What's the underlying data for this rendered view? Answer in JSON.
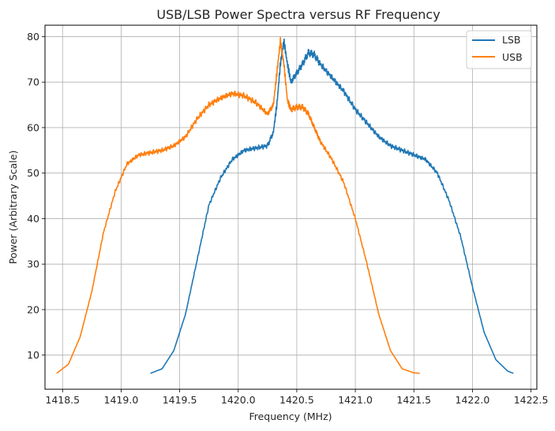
{
  "chart_data": {
    "type": "line",
    "title": "USB/LSB Power Spectra versus RF Frequency",
    "xlabel": "Frequency (MHz)",
    "ylabel": "Power (Arbitrary Scale)",
    "xlim": [
      1418.35,
      1422.55
    ],
    "ylim": [
      2.5,
      82.5
    ],
    "xticks": [
      "1418.5",
      "1419.0",
      "1419.5",
      "1420.0",
      "1420.5",
      "1421.0",
      "1421.5",
      "1422.0",
      "1422.5"
    ],
    "yticks": [
      "10",
      "20",
      "30",
      "40",
      "50",
      "60",
      "70",
      "80"
    ],
    "grid": true,
    "legend": "top-right",
    "series": [
      {
        "name": "LSB",
        "color": "#1f77b4",
        "x": [
          1419.25,
          1419.35,
          1419.45,
          1419.55,
          1419.65,
          1419.75,
          1419.85,
          1419.95,
          1420.05,
          1420.15,
          1420.25,
          1420.3,
          1420.33,
          1420.36,
          1420.39,
          1420.42,
          1420.45,
          1420.5,
          1420.55,
          1420.6,
          1420.65,
          1420.7,
          1420.8,
          1420.9,
          1421.0,
          1421.1,
          1421.2,
          1421.3,
          1421.4,
          1421.5,
          1421.6,
          1421.7,
          1421.8,
          1421.9,
          1422.0,
          1422.1,
          1422.2,
          1422.3,
          1422.35
        ],
        "y": [
          6,
          7,
          11,
          19,
          31,
          43,
          49,
          53,
          55,
          55.5,
          56,
          59,
          65,
          74,
          79,
          74,
          70,
          72,
          74,
          76.5,
          76,
          74,
          71,
          68,
          64,
          61,
          58,
          56,
          55,
          54,
          53,
          50,
          44,
          36,
          25,
          15,
          9,
          6.5,
          6
        ]
      },
      {
        "name": "USB",
        "color": "#ff7f0e",
        "x": [
          1418.45,
          1418.55,
          1418.65,
          1418.75,
          1418.85,
          1418.95,
          1419.05,
          1419.15,
          1419.25,
          1419.35,
          1419.45,
          1419.55,
          1419.65,
          1419.75,
          1419.85,
          1419.95,
          1420.05,
          1420.15,
          1420.25,
          1420.3,
          1420.33,
          1420.36,
          1420.39,
          1420.42,
          1420.45,
          1420.5,
          1420.55,
          1420.6,
          1420.65,
          1420.7,
          1420.8,
          1420.9,
          1421.0,
          1421.1,
          1421.2,
          1421.3,
          1421.4,
          1421.5,
          1421.55
        ],
        "y": [
          6,
          8,
          14,
          24,
          37,
          46,
          52,
          54,
          54.5,
          55,
          56,
          58,
          62,
          65,
          66.5,
          67.5,
          67,
          65.5,
          63,
          65,
          72,
          79,
          74,
          66,
          64,
          64.5,
          64.5,
          63,
          60,
          57,
          53,
          48,
          40,
          30,
          19,
          11,
          7,
          6.1,
          6
        ]
      }
    ]
  }
}
